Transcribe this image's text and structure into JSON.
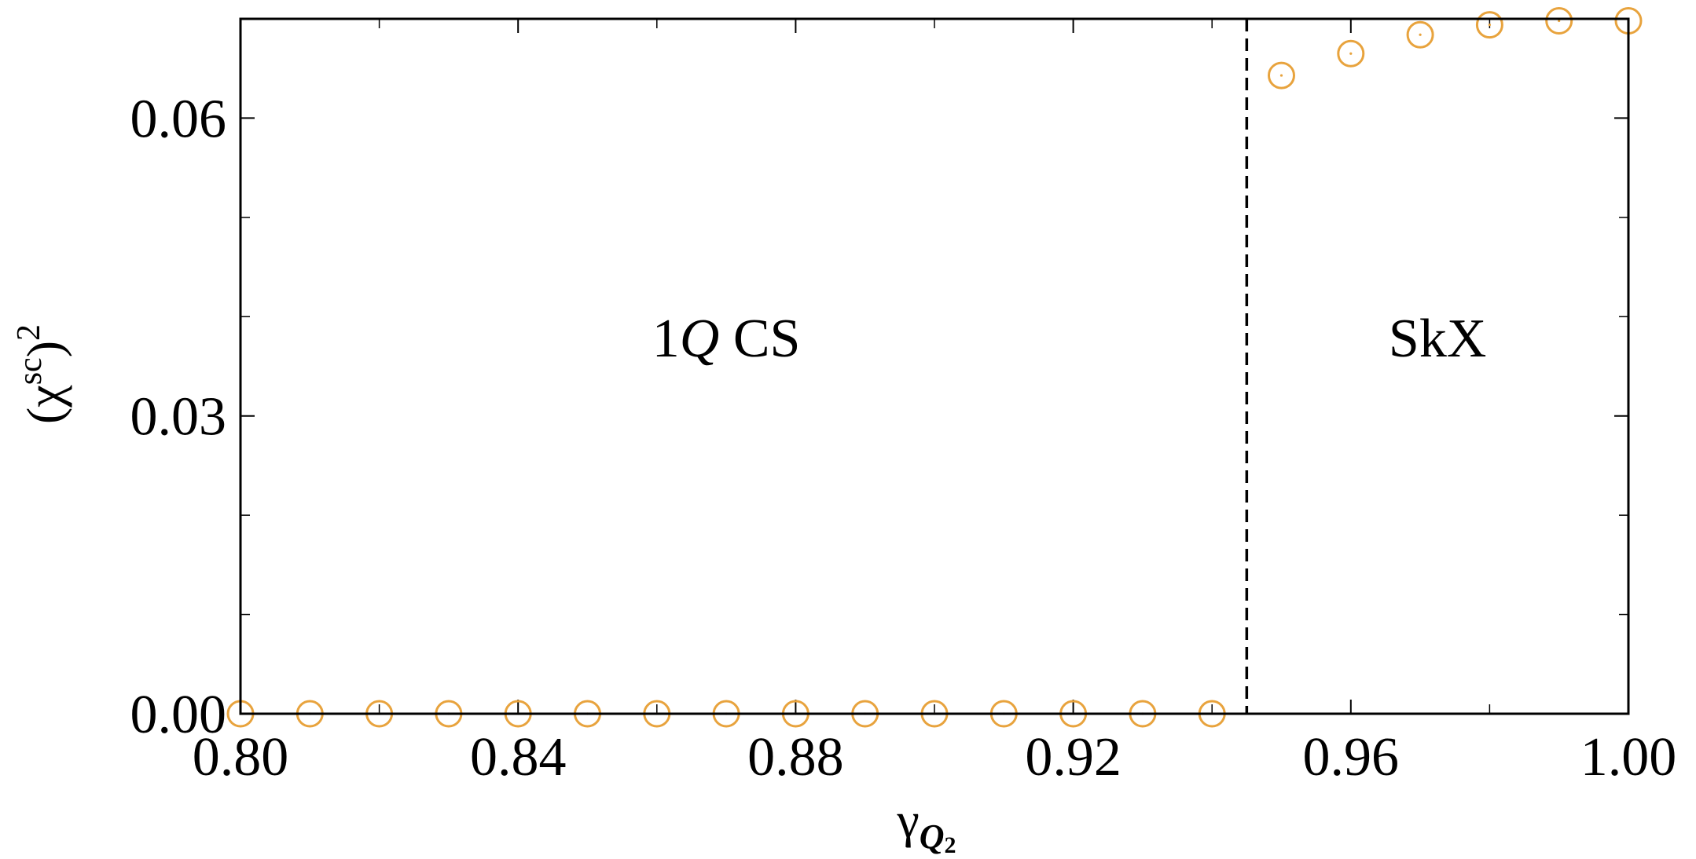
{
  "chart_data": {
    "type": "scatter",
    "title": "",
    "xlabel": "γ",
    "xlabel_subscript": "Q",
    "xlabel_subscript_index": "2",
    "ylabel_base": "(χ",
    "ylabel_superscript": "sc",
    "ylabel_close": ")",
    "ylabel_power": "2",
    "xlim": [
      0.8,
      1.0
    ],
    "ylim": [
      0.0,
      0.07
    ],
    "x_ticks": [
      0.8,
      0.84,
      0.88,
      0.92,
      0.96,
      1.0
    ],
    "x_tick_labels": [
      "0.80",
      "0.84",
      "0.88",
      "0.92",
      "0.96",
      "1.00"
    ],
    "x_minor_ticks": [
      0.82,
      0.86,
      0.9,
      0.94,
      0.98
    ],
    "y_ticks": [
      0.0,
      0.03,
      0.06
    ],
    "y_tick_labels": [
      "0.00",
      "0.03",
      "0.06"
    ],
    "y_minor_ticks": [
      0.01,
      0.02,
      0.04,
      0.05
    ],
    "grid": false,
    "phase_boundary_x": 0.945,
    "regions": [
      {
        "label_main": "1",
        "label_italic": "Q",
        "label_rest": " CS",
        "x": 0.87,
        "y": 0.036
      },
      {
        "label_main": "SkX",
        "label_italic": "",
        "label_rest": "",
        "x": 0.9725,
        "y": 0.036
      }
    ],
    "series": [
      {
        "color": "#e8a33d",
        "marker": "open-circle",
        "x": [
          0.8,
          0.81,
          0.82,
          0.83,
          0.84,
          0.85,
          0.86,
          0.87,
          0.88,
          0.89,
          0.9,
          0.91,
          0.92,
          0.93,
          0.94,
          0.95,
          0.96,
          0.97,
          0.98,
          0.99,
          1.0
        ],
        "y": [
          0.0,
          0.0,
          0.0,
          0.0,
          0.0,
          0.0,
          0.0,
          0.0,
          0.0,
          0.0,
          0.0,
          0.0,
          0.0,
          0.0,
          0.0,
          0.0643,
          0.0665,
          0.0684,
          0.0694,
          0.0698,
          0.0698
        ]
      }
    ]
  }
}
